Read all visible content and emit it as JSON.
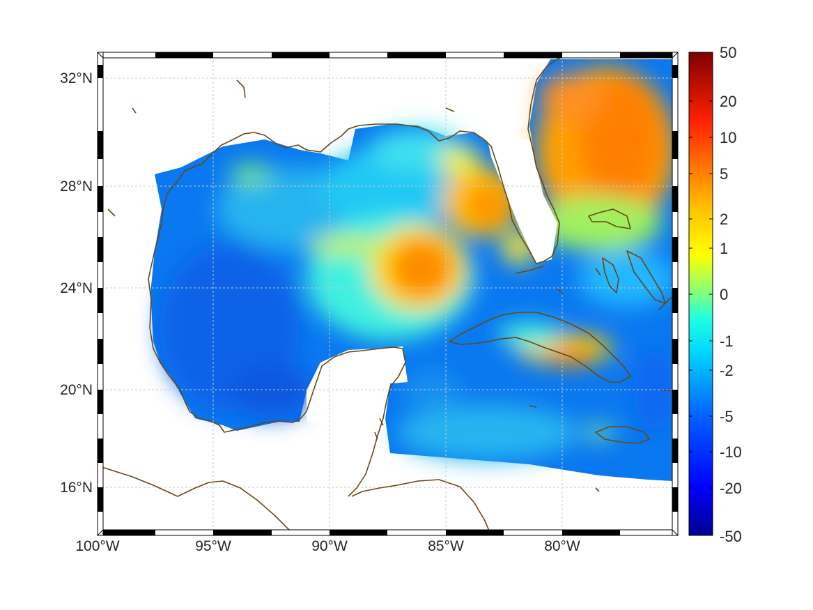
{
  "map": {
    "projection": "mercator",
    "lon_range": [
      -100,
      -75
    ],
    "lat_range": [
      14.2,
      33
    ],
    "grid": true,
    "coastline_color": "#6b4513",
    "lon_ticks": [
      {
        "value": -100,
        "label": "100°W"
      },
      {
        "value": -95,
        "label": "95°W"
      },
      {
        "value": -90,
        "label": "90°W"
      },
      {
        "value": -85,
        "label": "85°W"
      },
      {
        "value": -80,
        "label": "80°W"
      }
    ],
    "lat_ticks": [
      {
        "value": 32,
        "label": "32°N"
      },
      {
        "value": 28,
        "label": "28°N"
      },
      {
        "value": 24,
        "label": "24°N"
      },
      {
        "value": 20,
        "label": "20°N"
      },
      {
        "value": 16,
        "label": "16°N"
      }
    ]
  },
  "colorbar": {
    "colormap": "jet",
    "scale": "symmetric-log",
    "labels": [
      "50",
      "20",
      "10",
      "5",
      "2",
      "1",
      "0",
      "-1",
      "-2",
      "-5",
      "-10",
      "-20",
      "-50"
    ],
    "colors": [
      "#00008f",
      "#0000ff",
      "#0080ff",
      "#00ffff",
      "#80ff80",
      "#ffff00",
      "#ff8000",
      "#ff0000",
      "#800000"
    ]
  },
  "field_features": [
    {
      "region": "central Gulf warm eddy",
      "level": "5"
    },
    {
      "region": "Atlantic off Georgia/South Carolina",
      "level": "10"
    },
    {
      "region": "West Florida shelf",
      "level": "5"
    },
    {
      "region": "southeast Cuba",
      "level": "5"
    },
    {
      "region": "western Gulf basin",
      "level": "-5"
    },
    {
      "region": "Caribbean south of Cuba",
      "level": "-5"
    }
  ]
}
